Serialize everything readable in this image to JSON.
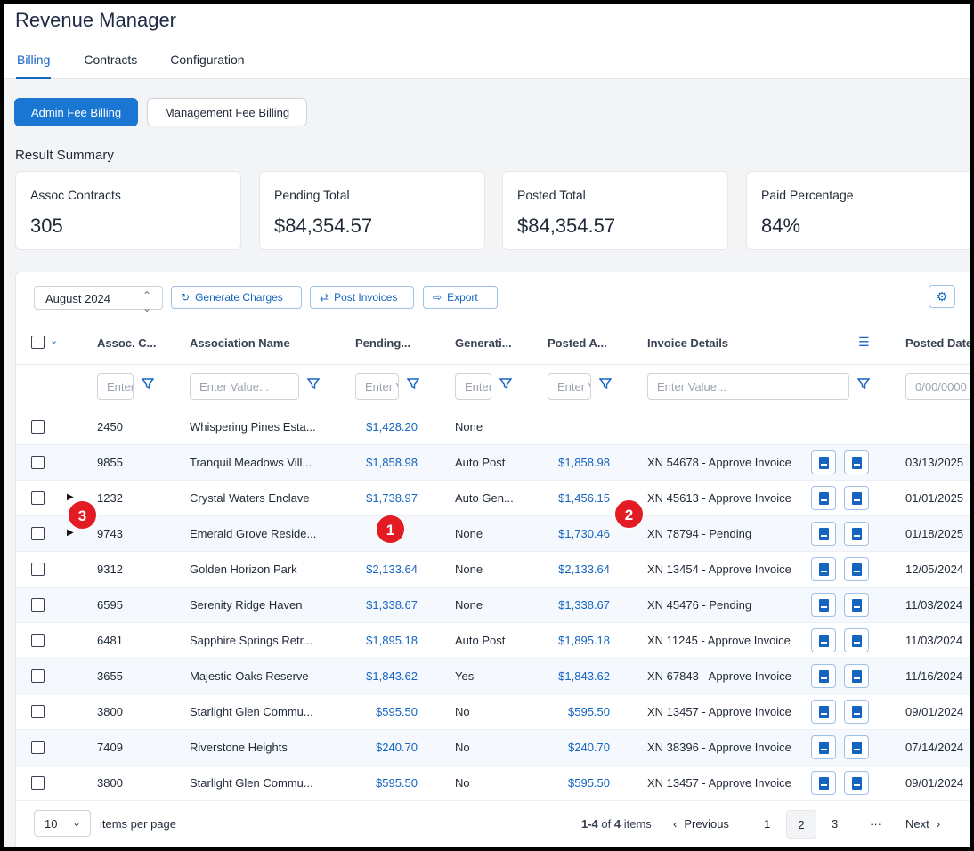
{
  "app": {
    "title": "Revenue Manager"
  },
  "tabs": [
    {
      "label": "Billing"
    },
    {
      "label": "Contracts"
    },
    {
      "label": "Configuration"
    }
  ],
  "billing_modes": {
    "admin": "Admin Fee Billing",
    "management": "Management Fee Billing"
  },
  "summary": {
    "title": "Result Summary",
    "cards": [
      {
        "label": "Assoc Contracts",
        "value": "305"
      },
      {
        "label": "Pending Total",
        "value": "$84,354.57"
      },
      {
        "label": "Posted Total",
        "value": "$84,354.57"
      },
      {
        "label": "Paid Percentage",
        "value": "84%"
      }
    ]
  },
  "toolbar": {
    "month": "August 2024",
    "generate_label": "Generate Charges",
    "post_label": "Post Invoices",
    "export_label": "Export"
  },
  "columns": {
    "assoc_code": "Assoc. C...",
    "name": "Association Name",
    "pending": "Pending...",
    "generation": "Generati...",
    "posted": "Posted A...",
    "invoice": "Invoice Details",
    "posted_date": "Posted Date"
  },
  "filters": {
    "assoc_code": "Enter Value...",
    "name": "Enter Value...",
    "pending": "Enter Value...",
    "generation": "Enter Value...",
    "posted": "Enter Value...",
    "invoice": "Enter Value...",
    "posted_date": "0/00/0000"
  },
  "rows": [
    {
      "code": "2450",
      "name": "Whispering Pines Esta...",
      "pending": "$1,428.20",
      "generation": "None",
      "posted": "",
      "invoice": "",
      "date": ""
    },
    {
      "code": "9855",
      "name": "Tranquil Meadows Vill...",
      "pending": "$1,858.98",
      "generation": "Auto Post",
      "posted": "$1,858.98",
      "invoice": "XN 54678 - Approve Invoice",
      "date": "03/13/2025"
    },
    {
      "code": "1232",
      "name": "Crystal Waters Enclave",
      "pending": "$1,738.97",
      "generation": "Auto Gen...",
      "posted": "$1,456.15",
      "invoice": "XN 45613 - Approve Invoice",
      "date": "01/01/2025"
    },
    {
      "code": "9743",
      "name": "Emerald Grove Reside...",
      "pending": "",
      "generation": "None",
      "posted": "$1,730.46",
      "invoice": "XN 78794 - Pending",
      "date": "01/18/2025"
    },
    {
      "code": "9312",
      "name": "Golden Horizon Park",
      "pending": "$2,133.64",
      "generation": "None",
      "posted": "$2,133.64",
      "invoice": "XN 13454 - Approve Invoice",
      "date": "12/05/2024"
    },
    {
      "code": "6595",
      "name": "Serenity Ridge Haven",
      "pending": "$1,338.67",
      "generation": "None",
      "posted": "$1,338.67",
      "invoice": "XN 45476 - Pending",
      "date": "11/03/2024"
    },
    {
      "code": "6481",
      "name": "Sapphire Springs Retr...",
      "pending": "$1,895.18",
      "generation": "Auto Post",
      "posted": "$1,895.18",
      "invoice": "XN 11245 - Approve Invoice",
      "date": "11/03/2024"
    },
    {
      "code": "3655",
      "name": "Majestic Oaks Reserve",
      "pending": "$1,843.62",
      "generation": "Yes",
      "posted": "$1,843.62",
      "invoice": "XN 67843 - Approve Invoice",
      "date": "11/16/2024"
    },
    {
      "code": "3800",
      "name": "Starlight Glen Commu...",
      "pending": "$595.50",
      "generation": "No",
      "posted": "$595.50",
      "invoice": "XN 13457 - Approve Invoice",
      "date": "09/01/2024"
    },
    {
      "code": "7409",
      "name": "Riverstone Heights",
      "pending": "$240.70",
      "generation": "No",
      "posted": "$240.70",
      "invoice": "XN 38396 - Approve Invoice",
      "date": "07/14/2024"
    },
    {
      "code": "3800",
      "name": "Starlight Glen Commu...",
      "pending": "$595.50",
      "generation": "No",
      "posted": "$595.50",
      "invoice": "XN 13457 - Approve Invoice",
      "date": "09/01/2024"
    }
  ],
  "markers": [
    "1",
    "2",
    "3"
  ],
  "pagination": {
    "per_page": "10",
    "per_page_label": "items per page",
    "range_bold": "1-4",
    "range_of": "of",
    "range_total": "4",
    "range_items": "items",
    "previous": "Previous",
    "next": "Next",
    "pages": [
      "1",
      "2",
      "3"
    ],
    "ellipsis": "···"
  },
  "colors": {
    "accent": "#1976d2",
    "link": "#1565c0",
    "marker": "#e31b23"
  }
}
